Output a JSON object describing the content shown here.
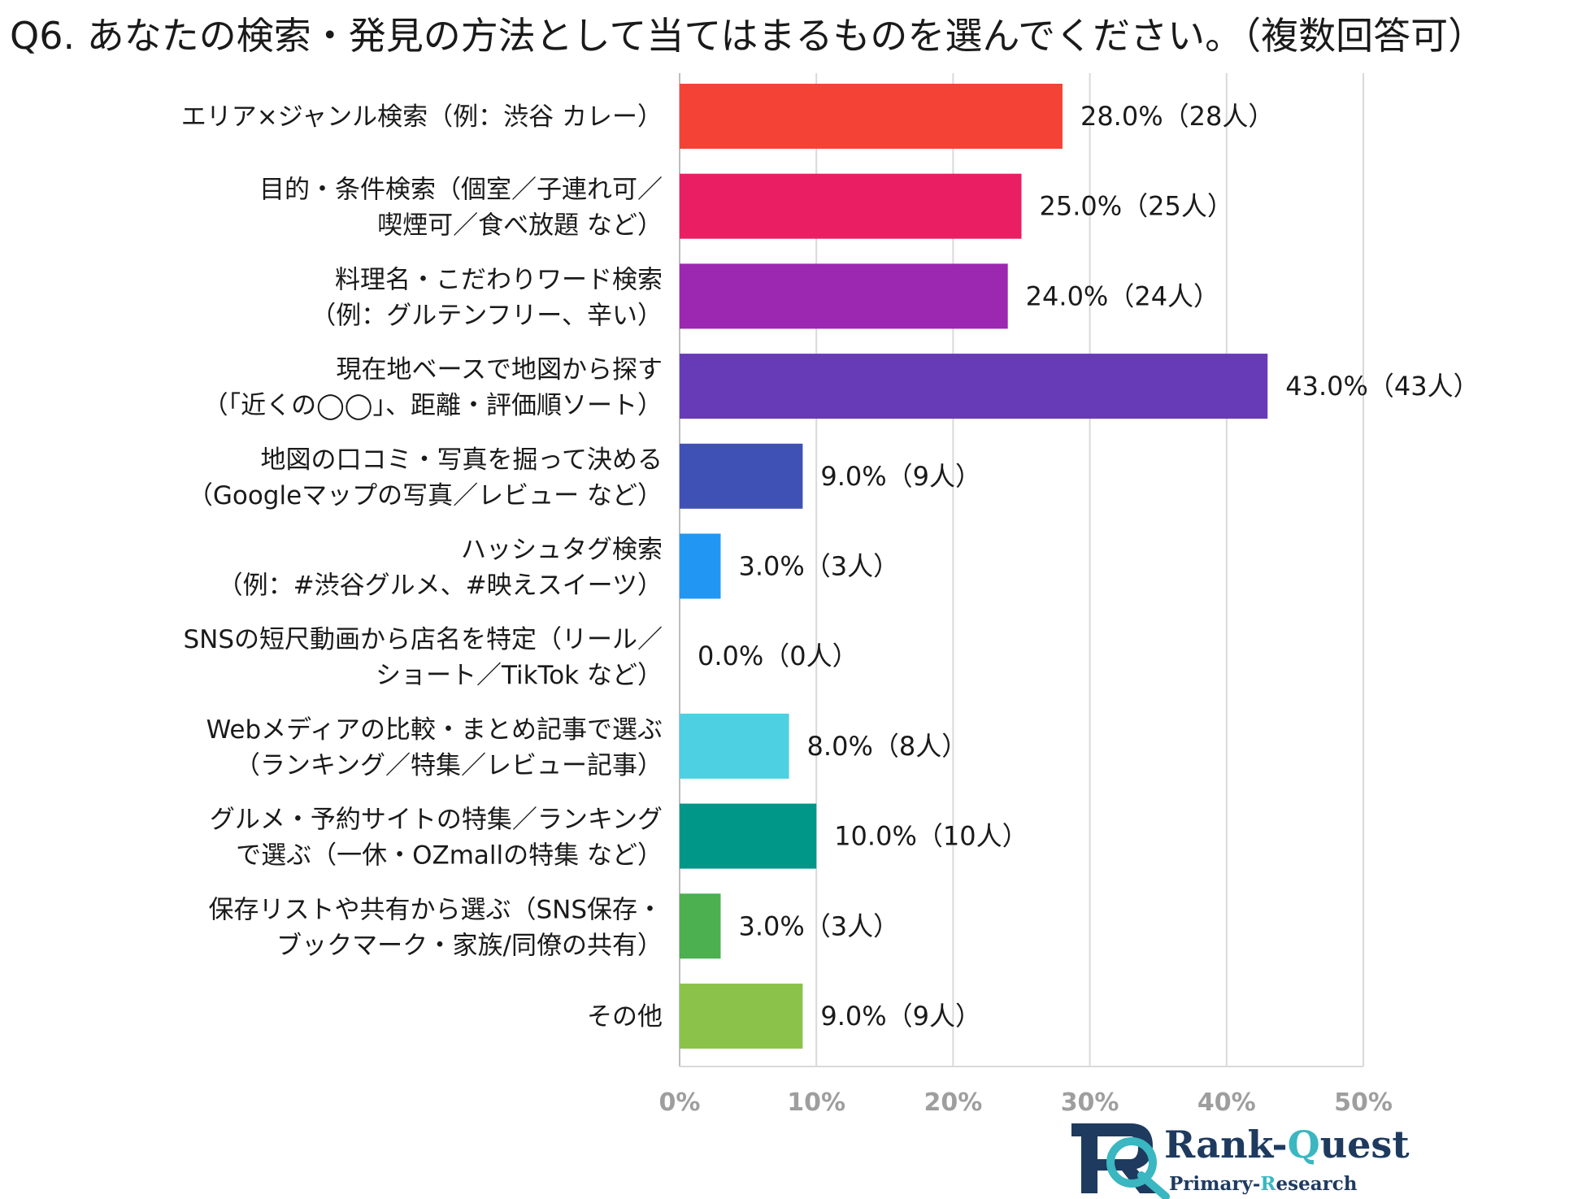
{
  "chart_data": {
    "type": "bar",
    "orientation": "horizontal",
    "title": "Q6. あなたの検索・発見の方法として当てはまるものを選んでください。（複数回答可）",
    "categories": [
      [
        "エリア×ジャンル検索（例：渋谷 カレー）"
      ],
      [
        "目的・条件検索（個室／子連れ可／",
        "喫煙可／食べ放題 など）"
      ],
      [
        "料理名・こだわりワード検索",
        "（例：グルテンフリー、辛い）"
      ],
      [
        "現在地ベースで地図から探す",
        "（「近くの◯◯」、距離・評価順ソート）"
      ],
      [
        "地図の口コミ・写真を掘って決める",
        "（Googleマップの写真／レビュー など）"
      ],
      [
        "ハッシュタグ検索",
        "（例：#渋谷グルメ、#映えスイーツ）"
      ],
      [
        "SNSの短尺動画から店名を特定（リール／",
        "ショート／TikTok など）"
      ],
      [
        "Webメディアの比較・まとめ記事で選ぶ",
        "（ランキング／特集／レビュー記事）"
      ],
      [
        "グルメ・予約サイトの特集／ランキング",
        "で選ぶ（一休・OZmallの特集 など）"
      ],
      [
        "保存リストや共有から選ぶ（SNS保存・",
        "ブックマーク・家族/同僚の共有）"
      ],
      [
        "その他"
      ]
    ],
    "values": [
      28.0,
      25.0,
      24.0,
      43.0,
      9.0,
      3.0,
      0.0,
      8.0,
      10.0,
      3.0,
      9.0
    ],
    "value_labels": [
      "28.0%（28人）",
      "25.0%（25人）",
      "24.0%（24人）",
      "43.0%（43人）",
      "9.0%（9人）",
      "3.0%（3人）",
      "0.0%（0人）",
      "8.0%（8人）",
      "10.0%（10人）",
      "3.0%（3人）",
      "9.0%（9人）"
    ],
    "colors": [
      "#f44336",
      "#e91e63",
      "#9c27b0",
      "#673ab7",
      "#3f51b5",
      "#2196f3",
      "#03a9f4",
      "#4dd0e1",
      "#009688",
      "#4caf50",
      "#8bc34a"
    ],
    "xlim": [
      0,
      50
    ],
    "xticks": [
      0,
      10,
      20,
      30,
      40,
      50
    ],
    "xtick_labels": [
      "0%",
      "10%",
      "20%",
      "30%",
      "40%",
      "50%"
    ],
    "grid": true,
    "xlabel": "",
    "ylabel": ""
  },
  "logo": {
    "name_main": "Rank-",
    "name_accent": "Q",
    "name_rest": "uest",
    "sub_main": "Primary-",
    "sub_accent": "R",
    "sub_rest": "esearch"
  }
}
